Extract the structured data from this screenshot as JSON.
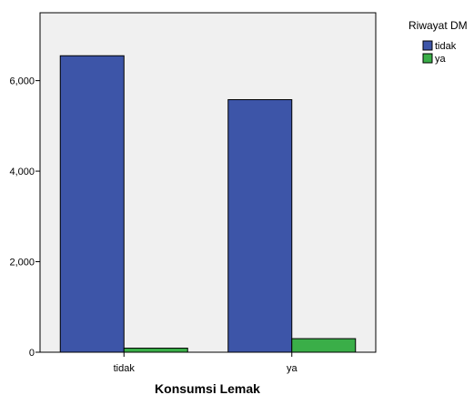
{
  "chart_data": {
    "type": "bar",
    "title": "",
    "xlabel": "Konsumsi Lemak",
    "ylabel": "",
    "categories": [
      "tidak",
      "ya"
    ],
    "series": [
      {
        "name": "tidak",
        "color": "#3d55a8",
        "values": [
          6550,
          5580
        ]
      },
      {
        "name": "ya",
        "color": "#3aae48",
        "values": [
          90,
          300
        ]
      }
    ],
    "ylim": [
      0,
      7500
    ],
    "yticks": [
      0,
      2000,
      4000,
      6000
    ],
    "ytick_labels": [
      "0",
      "2,000",
      "4,000",
      "6,000"
    ],
    "grid": false,
    "legend": {
      "title": "Riwayat DM",
      "position": "top-right"
    },
    "plot_background": "#f0f0f0"
  }
}
